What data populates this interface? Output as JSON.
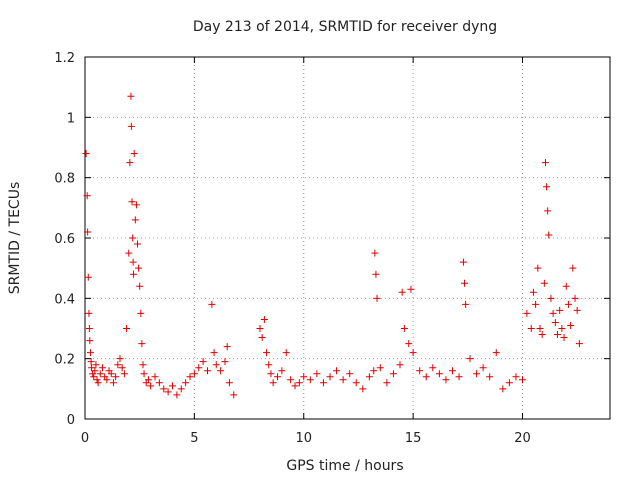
{
  "chart_data": {
    "type": "scatter",
    "title": "Day 213 of 2014, SRMTID for receiver dyng",
    "xlabel": "GPS time / hours",
    "ylabel": "SRMTID / TECUs",
    "xlim": [
      0,
      24
    ],
    "ylim": [
      0,
      1.2
    ],
    "xticks": [
      0,
      5,
      10,
      15,
      20
    ],
    "xtick_labels": [
      "0",
      "5",
      "10",
      "15",
      "20"
    ],
    "yticks": [
      0,
      0.2,
      0.4,
      0.6,
      0.8,
      1.0,
      1.2
    ],
    "ytick_labels": [
      "0",
      "0.2",
      "0.4",
      "0.6",
      "0.8",
      "1",
      "1.2"
    ],
    "grid": true,
    "marker": "plus",
    "color": "#e00000",
    "series": [
      {
        "name": "SRMTID",
        "x": [
          0.05,
          0.1,
          0.12,
          0.15,
          0.18,
          0.2,
          0.22,
          0.25,
          0.28,
          0.3,
          0.35,
          0.4,
          0.45,
          0.5,
          0.55,
          0.6,
          0.7,
          0.8,
          0.9,
          1.0,
          1.1,
          1.2,
          1.3,
          1.4,
          1.5,
          1.6,
          1.7,
          1.8,
          1.9,
          2.0,
          2.05,
          2.1,
          2.12,
          2.15,
          2.18,
          2.2,
          2.22,
          2.25,
          2.3,
          2.35,
          2.4,
          2.45,
          2.5,
          2.55,
          2.6,
          2.65,
          2.7,
          2.8,
          2.9,
          3.0,
          3.2,
          3.4,
          3.6,
          3.8,
          4.0,
          4.2,
          4.4,
          4.6,
          4.8,
          5.0,
          5.2,
          5.4,
          5.6,
          5.8,
          5.9,
          6.0,
          6.2,
          6.4,
          6.5,
          6.6,
          6.8,
          8.0,
          8.1,
          8.2,
          8.3,
          8.4,
          8.5,
          8.6,
          8.8,
          9.0,
          9.2,
          9.4,
          9.6,
          9.8,
          10.0,
          10.3,
          10.6,
          10.9,
          11.2,
          11.5,
          11.8,
          12.1,
          12.4,
          12.7,
          13.0,
          13.2,
          13.25,
          13.3,
          13.35,
          13.5,
          13.8,
          14.1,
          14.4,
          14.5,
          14.6,
          14.8,
          14.9,
          15.0,
          15.3,
          15.6,
          15.9,
          16.2,
          16.5,
          16.8,
          17.1,
          17.3,
          17.35,
          17.4,
          17.6,
          17.9,
          18.2,
          18.5,
          18.8,
          19.1,
          19.4,
          19.7,
          20.0,
          20.2,
          20.4,
          20.5,
          20.6,
          20.7,
          20.8,
          20.9,
          21.0,
          21.05,
          21.1,
          21.15,
          21.2,
          21.3,
          21.4,
          21.5,
          21.6,
          21.7,
          21.8,
          21.9,
          22.0,
          22.1,
          22.2,
          22.3,
          22.4,
          22.5,
          22.6
        ],
        "values": [
          0.88,
          0.74,
          0.62,
          0.47,
          0.35,
          0.3,
          0.26,
          0.22,
          0.19,
          0.17,
          0.15,
          0.14,
          0.16,
          0.18,
          0.13,
          0.12,
          0.15,
          0.17,
          0.14,
          0.13,
          0.16,
          0.15,
          0.12,
          0.14,
          0.18,
          0.2,
          0.17,
          0.15,
          0.3,
          0.55,
          0.85,
          1.07,
          0.97,
          0.72,
          0.6,
          0.52,
          0.48,
          0.88,
          0.66,
          0.71,
          0.58,
          0.5,
          0.44,
          0.35,
          0.25,
          0.18,
          0.15,
          0.12,
          0.13,
          0.11,
          0.14,
          0.12,
          0.1,
          0.09,
          0.11,
          0.08,
          0.1,
          0.12,
          0.14,
          0.15,
          0.17,
          0.19,
          0.16,
          0.38,
          0.22,
          0.18,
          0.16,
          0.19,
          0.24,
          0.12,
          0.08,
          0.3,
          0.27,
          0.33,
          0.22,
          0.18,
          0.15,
          0.12,
          0.14,
          0.16,
          0.22,
          0.13,
          0.11,
          0.12,
          0.14,
          0.13,
          0.15,
          0.12,
          0.14,
          0.16,
          0.13,
          0.15,
          0.12,
          0.1,
          0.14,
          0.16,
          0.55,
          0.48,
          0.4,
          0.17,
          0.12,
          0.15,
          0.18,
          0.42,
          0.3,
          0.25,
          0.43,
          0.22,
          0.16,
          0.14,
          0.17,
          0.15,
          0.13,
          0.16,
          0.14,
          0.52,
          0.45,
          0.38,
          0.2,
          0.15,
          0.17,
          0.14,
          0.22,
          0.1,
          0.12,
          0.14,
          0.13,
          0.35,
          0.3,
          0.42,
          0.38,
          0.5,
          0.3,
          0.28,
          0.45,
          0.85,
          0.77,
          0.69,
          0.61,
          0.4,
          0.35,
          0.32,
          0.28,
          0.36,
          0.3,
          0.27,
          0.44,
          0.38,
          0.31,
          0.5,
          0.4,
          0.36,
          0.25
        ]
      }
    ]
  }
}
